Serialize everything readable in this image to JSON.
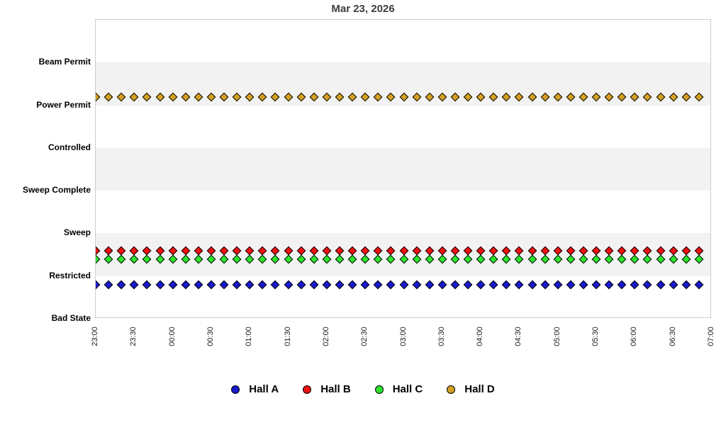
{
  "chart_data": {
    "type": "scatter",
    "title": "Mar 23, 2026",
    "xlabel": "",
    "ylabel": "",
    "y_categories": [
      "Bad State",
      "Restricted",
      "Sweep",
      "Sweep Complete",
      "Controlled",
      "Power Permit",
      "Beam Permit"
    ],
    "ylim": [
      0,
      7
    ],
    "shaded_bands": [
      [
        1,
        2
      ],
      [
        3,
        4
      ],
      [
        5,
        6
      ]
    ],
    "band_color": "#f2f2f2",
    "plot_border_color": "#cccccc",
    "x_tick_labels": [
      "23:00",
      "23:30",
      "00:00",
      "00:30",
      "01:00",
      "01:30",
      "02:00",
      "02:30",
      "03:00",
      "03:30",
      "04:00",
      "04:30",
      "05:00",
      "05:30",
      "06:00",
      "06:30",
      "07:00"
    ],
    "x_start": "23:00",
    "x_end": "07:00",
    "x_total_minutes": 480,
    "x_step_minutes": 10,
    "times": [
      "23:00",
      "23:10",
      "23:20",
      "23:30",
      "23:40",
      "23:50",
      "00:00",
      "00:10",
      "00:20",
      "00:30",
      "00:40",
      "00:50",
      "01:00",
      "01:10",
      "01:20",
      "01:30",
      "01:40",
      "01:50",
      "02:00",
      "02:10",
      "02:20",
      "02:30",
      "02:40",
      "02:50",
      "03:00",
      "03:10",
      "03:20",
      "03:30",
      "03:40",
      "03:50",
      "04:00",
      "04:10",
      "04:20",
      "04:30",
      "04:40",
      "04:50",
      "05:00",
      "05:10",
      "05:20",
      "05:30",
      "05:40",
      "05:50",
      "06:00",
      "06:10",
      "06:20",
      "06:30",
      "06:40",
      "06:50"
    ],
    "series": [
      {
        "name": "Hall A",
        "color": "#1a1acc",
        "state": "Restricted",
        "level": 0.8
      },
      {
        "name": "Hall B",
        "color": "#ee1111",
        "state": "Restricted",
        "level": 1.6
      },
      {
        "name": "Hall C",
        "color": "#2ce52c",
        "state": "Restricted",
        "level": 1.4
      },
      {
        "name": "Hall D",
        "color": "#d4a024",
        "state": "Power Permit",
        "level": 5.2
      }
    ],
    "legend_position": "bottom"
  },
  "legend": {
    "items": [
      {
        "label": "Hall A",
        "color": "#1a1acc"
      },
      {
        "label": "Hall B",
        "color": "#ee1111"
      },
      {
        "label": "Hall C",
        "color": "#2ce52c"
      },
      {
        "label": "Hall D",
        "color": "#d4a024"
      }
    ]
  }
}
